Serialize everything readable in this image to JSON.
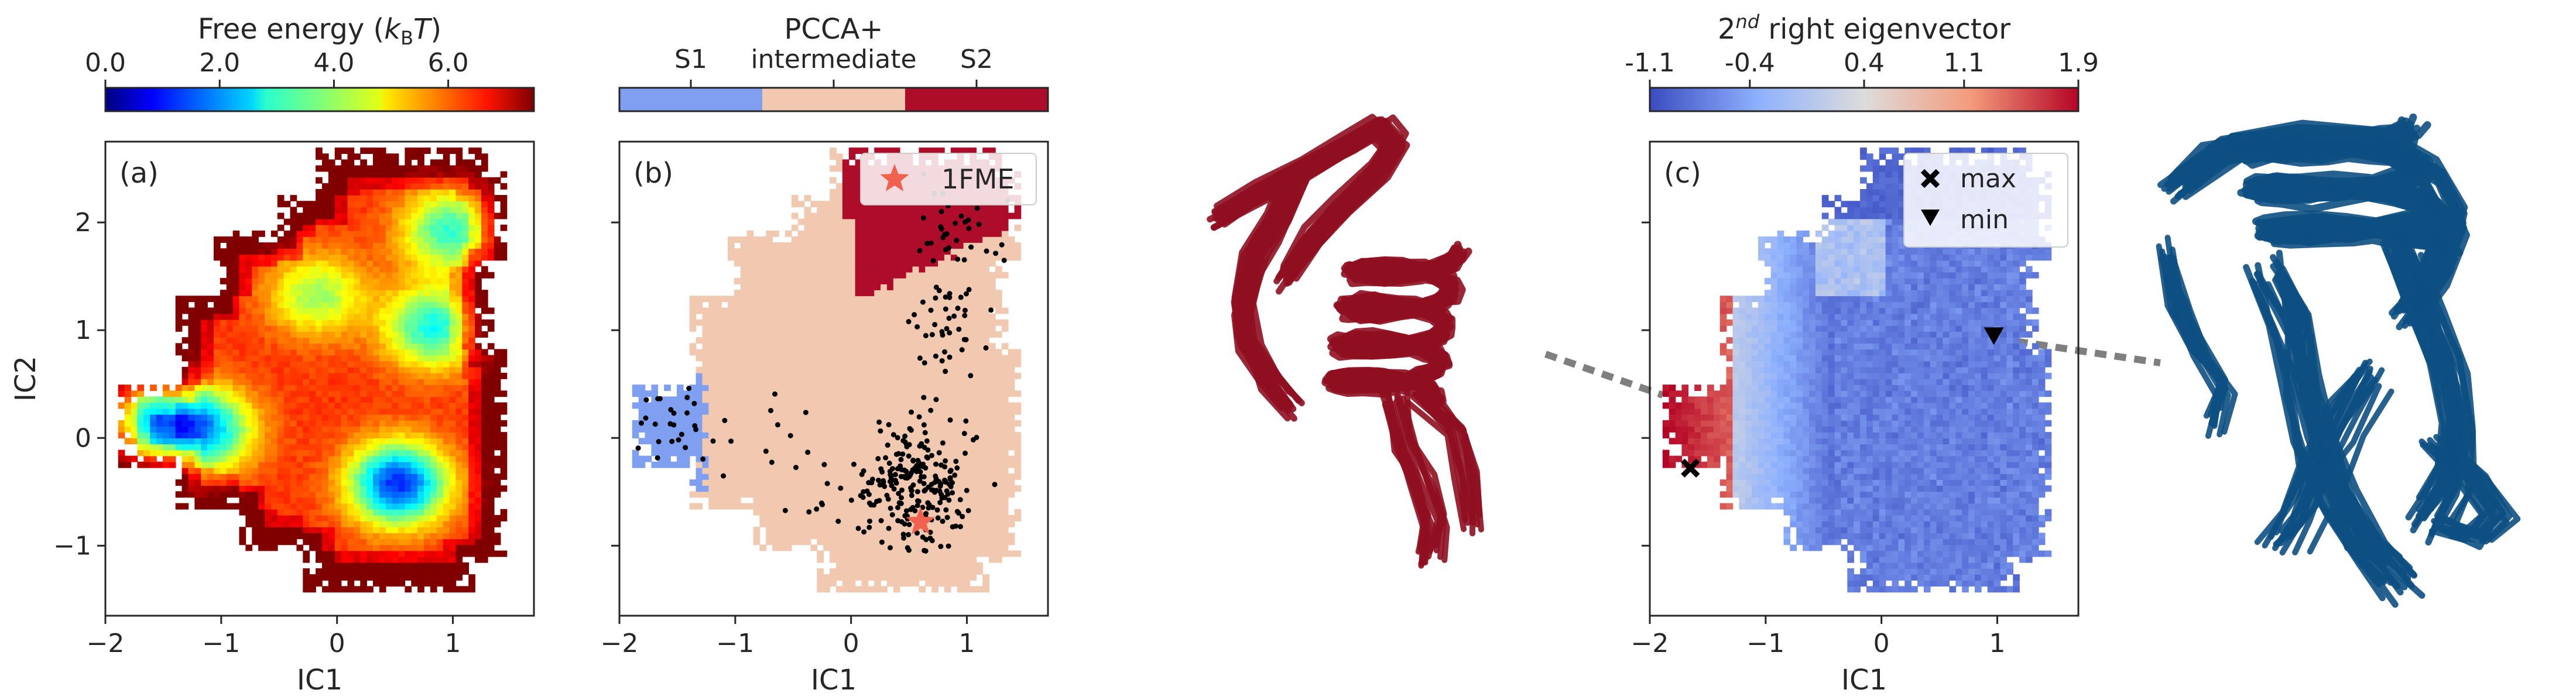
{
  "colors": {
    "s1": "#7f9ff0",
    "intermediate": "#f1c9b0",
    "s2": "#ae0d2a",
    "protein_red": "#8f1020",
    "protein_blue": "#0d4f82",
    "dashed_line": "#7f7f7f",
    "star": "#f0624d"
  },
  "chart_data": [
    {
      "id": "a",
      "type": "heatmap",
      "panel_label": "(a)",
      "xlabel": "IC1",
      "ylabel": "IC2",
      "xlim": [
        -2.0,
        1.7
      ],
      "ylim": [
        -1.65,
        2.75
      ],
      "xticks": [
        -2,
        -1,
        0,
        1
      ],
      "xtick_labels": [
        "−2",
        "−1",
        "0",
        "1"
      ],
      "yticks": [
        -1,
        0,
        1,
        2
      ],
      "ytick_labels": [
        "−1",
        "0",
        "1",
        "2"
      ],
      "colormap": "jet",
      "colorbar": {
        "title": "Free energy (",
        "title_italic_sub": "k",
        "title_sub": "B",
        "title_italic": "T",
        "title_close": ")",
        "range": [
          0.0,
          7.5
        ],
        "ticks": [
          0.0,
          2.0,
          4.0,
          6.0
        ],
        "tick_labels": [
          "0.0",
          "2.0",
          "4.0",
          "6.0"
        ]
      },
      "minima": [
        {
          "x": 0.5,
          "y": -0.45,
          "depth": 1.0
        },
        {
          "x": -1.65,
          "y": 0.15,
          "depth": 0.85
        },
        {
          "x": -1.15,
          "y": 0.05,
          "depth": 0.7
        },
        {
          "x": 0.8,
          "y": 1.0,
          "depth": 0.65
        },
        {
          "x": 0.95,
          "y": 1.9,
          "depth": 0.6
        },
        {
          "x": -0.2,
          "y": 1.3,
          "depth": 0.45
        }
      ]
    },
    {
      "id": "b",
      "type": "scatter",
      "panel_label": "(b)",
      "xlabel": "IC1",
      "ylabel": "",
      "xlim": [
        -2.0,
        1.7
      ],
      "ylim": [
        -1.65,
        2.75
      ],
      "xticks": [
        -2,
        -1,
        0,
        1
      ],
      "xtick_labels": [
        "−2",
        "−1",
        "0",
        "1"
      ],
      "yticks": [
        -1,
        0,
        1,
        2
      ],
      "colorbar": {
        "title": "PCCA+",
        "categories": [
          "S1",
          "intermediate",
          "S2"
        ]
      },
      "legend": {
        "label": "1FME",
        "position": "top-right"
      },
      "star_point": {
        "x": 0.6,
        "y": -0.78
      },
      "scatter_clusters": [
        {
          "x": 0.55,
          "y": -0.45,
          "sx": 0.22,
          "sy": 0.28,
          "n": 230
        },
        {
          "x": 0.85,
          "y": 1.0,
          "sx": 0.18,
          "sy": 0.35,
          "n": 45
        },
        {
          "x": 0.9,
          "y": 2.0,
          "sx": 0.22,
          "sy": 0.18,
          "n": 30
        },
        {
          "x": -1.6,
          "y": 0.1,
          "sx": 0.18,
          "sy": 0.15,
          "n": 25
        },
        {
          "x": -0.5,
          "y": -0.1,
          "sx": 0.45,
          "sy": 0.35,
          "n": 25
        }
      ]
    },
    {
      "id": "c",
      "type": "heatmap",
      "panel_label": "(c)",
      "xlabel": "IC1",
      "ylabel": "",
      "xlim": [
        -2.0,
        1.7
      ],
      "ylim": [
        -1.65,
        2.75
      ],
      "xticks": [
        -2,
        -1,
        0,
        1
      ],
      "xtick_labels": [
        "−2",
        "−1",
        "0",
        "1"
      ],
      "yticks": [
        -1,
        0,
        1,
        2
      ],
      "colormap": "coolwarm",
      "colorbar": {
        "title_sup": "nd",
        "title_pre": "2",
        "title_rest": " right eigenvector",
        "range": [
          -1.1,
          1.9
        ],
        "ticks": [
          -1.1,
          -0.4,
          0.4,
          1.1,
          1.9
        ],
        "tick_labels": [
          "-1.1",
          "-0.4",
          "0.4",
          "1.1",
          "1.9"
        ]
      },
      "legend": [
        {
          "label": "max",
          "marker": "x"
        },
        {
          "label": "min",
          "marker": "triangle-down"
        }
      ],
      "max_point": {
        "x": -1.65,
        "y": -0.28
      },
      "min_point": {
        "x": 0.97,
        "y": 0.95
      }
    }
  ]
}
